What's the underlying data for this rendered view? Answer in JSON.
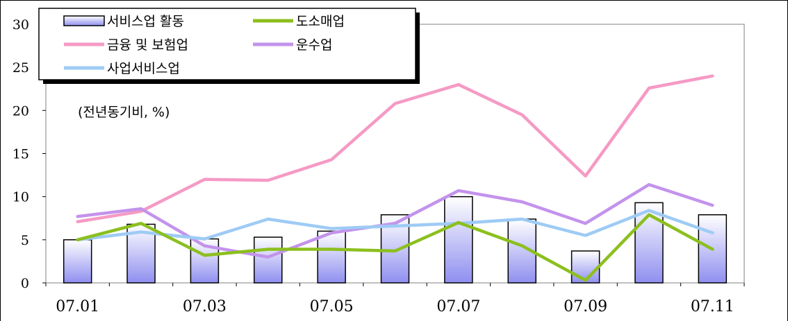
{
  "chart_data": {
    "type": "bar",
    "categories": [
      "07.01",
      "07.02",
      "07.03",
      "07.04",
      "07.05",
      "07.06",
      "07.07",
      "07.08",
      "07.09",
      "07.10",
      "07.11"
    ],
    "x_tick_labels": [
      "07.01",
      "07.03",
      "07.05",
      "07.07",
      "07.09",
      "07.11"
    ],
    "y_ticks": [
      0,
      5,
      10,
      15,
      20,
      25,
      30
    ],
    "ylim": [
      0,
      30
    ],
    "unit_note": "(전년동기비, %)",
    "series": [
      {
        "name": "서비스업 활동",
        "type": "bar",
        "values": [
          5.0,
          6.8,
          5.1,
          5.3,
          6.0,
          7.9,
          10.0,
          7.4,
          3.7,
          9.3,
          7.9
        ]
      },
      {
        "name": "도소매업",
        "type": "line",
        "values": [
          5.0,
          6.9,
          3.2,
          3.9,
          3.9,
          3.7,
          7.0,
          4.3,
          0.3,
          7.9,
          3.9
        ]
      },
      {
        "name": "금융 및 보험업",
        "type": "line",
        "values": [
          7.1,
          8.3,
          12.0,
          11.9,
          14.3,
          20.8,
          23.0,
          19.5,
          12.4,
          22.6,
          24.0
        ]
      },
      {
        "name": "운수업",
        "type": "line",
        "values": [
          7.7,
          8.6,
          4.3,
          3.0,
          5.8,
          6.9,
          10.7,
          9.4,
          6.9,
          11.4,
          9.0
        ]
      },
      {
        "name": "사업서비스업",
        "type": "line",
        "values": [
          5.0,
          5.9,
          5.1,
          7.4,
          6.3,
          6.6,
          6.9,
          7.4,
          5.5,
          8.4,
          5.8
        ]
      }
    ],
    "colors": {
      "bar_fill_top": "#ffffff",
      "bar_fill_bottom": "#8f8ff0",
      "bar_stroke": "#000000",
      "도소매업": "#8cbf1e",
      "금융 및 보험업": "#f59ac4",
      "운수업": "#c393ec",
      "사업서비스업": "#9ecbf5"
    },
    "legend": "top-left",
    "grid": false
  }
}
